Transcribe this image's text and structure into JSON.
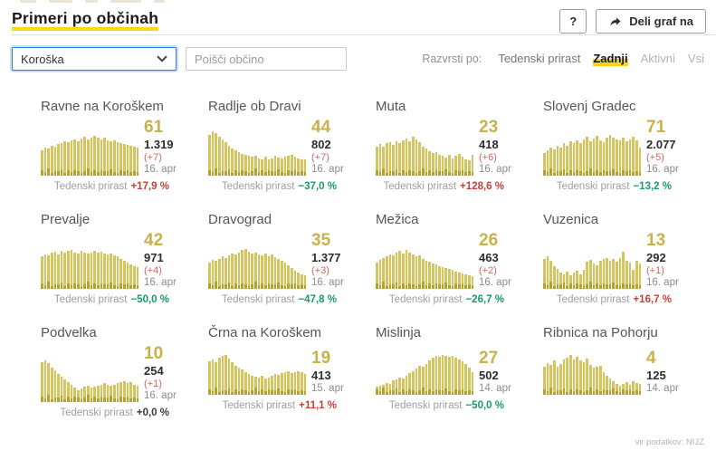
{
  "header": {
    "title": "Primeri po občinah",
    "help_label": "?",
    "share_label": "Deli graf na"
  },
  "filters": {
    "region_selected": "Koroška",
    "search_placeholder": "Poišči občino",
    "sort_label": "Razvrsti po:",
    "sort_options": [
      {
        "label": "Tedenski prirast",
        "active": false,
        "dim": false
      },
      {
        "label": "Zadnji",
        "active": true,
        "dim": false
      },
      {
        "label": "Aktivni",
        "active": false,
        "dim": true
      },
      {
        "label": "Vsi",
        "active": false,
        "dim": true
      }
    ]
  },
  "weekly_label": "Tedenski prirast",
  "footer": {
    "source": "vir podatkov: NIJZ"
  },
  "colors": {
    "accent_yellow": "#ffd615",
    "bar": "#d6c55e",
    "bar_dark": "#b3a22c",
    "big_number": "#c9b14c",
    "growth_red": "#c64036",
    "growth_green": "#179a6c",
    "growth_neutral": "#3b3b3b",
    "new_count": "#d1685f"
  },
  "bar_base_pattern": [
    12,
    7,
    14,
    6,
    10,
    9,
    13,
    5,
    11,
    8,
    12,
    10,
    6,
    9,
    14,
    8,
    11,
    7,
    12,
    9,
    10,
    13,
    8,
    6,
    11,
    9,
    12,
    8,
    10,
    7
  ],
  "cards": [
    {
      "name": "Ravne na Koroškem",
      "last": "61",
      "total": "1.319",
      "new": "(+7)",
      "date": "16. apr",
      "growth": "+17,9 %",
      "growth_color": "red",
      "bars": [
        52,
        58,
        56,
        62,
        60,
        64,
        67,
        70,
        68,
        72,
        74,
        71,
        76,
        79,
        74,
        77,
        81,
        78,
        74,
        77,
        73,
        70,
        72,
        69,
        66,
        64,
        63,
        61,
        59,
        57
      ]
    },
    {
      "name": "Radlje ob Dravi",
      "last": "44",
      "total": "802",
      "new": "(+7)",
      "date": "16. apr",
      "growth": "−37,0 %",
      "growth_color": "green",
      "bars": [
        84,
        90,
        87,
        80,
        74,
        68,
        61,
        56,
        52,
        48,
        45,
        42,
        40,
        38,
        41,
        36,
        34,
        38,
        33,
        36,
        40,
        37,
        35,
        38,
        41,
        43,
        39,
        36,
        34,
        33
      ]
    },
    {
      "name": "Muta",
      "last": "23",
      "total": "418",
      "new": "(+6)",
      "date": "16. apr",
      "growth": "+128,6 %",
      "growth_color": "red",
      "bars": [
        60,
        64,
        59,
        66,
        68,
        63,
        70,
        67,
        72,
        76,
        70,
        79,
        74,
        69,
        60,
        55,
        50,
        46,
        49,
        42,
        40,
        37,
        42,
        36,
        40,
        45,
        38,
        34,
        32,
        43
      ]
    },
    {
      "name": "Slovenj Gradec",
      "last": "71",
      "total": "2.077",
      "new": "(+5)",
      "date": "16. apr",
      "growth": "−13,2 %",
      "growth_color": "green",
      "bars": [
        46,
        52,
        57,
        53,
        61,
        58,
        66,
        62,
        70,
        67,
        73,
        66,
        75,
        79,
        70,
        76,
        81,
        73,
        68,
        77,
        83,
        78,
        74,
        72,
        77,
        70,
        74,
        79,
        72,
        58
      ]
    },
    {
      "name": "Prevalje",
      "last": "42",
      "total": "971",
      "new": "(+4)",
      "date": "16. apr",
      "growth": "−50,0 %",
      "growth_color": "green",
      "bars": [
        66,
        71,
        69,
        74,
        76,
        71,
        78,
        74,
        77,
        79,
        75,
        72,
        77,
        74,
        72,
        75,
        78,
        74,
        76,
        72,
        70,
        73,
        68,
        66,
        62,
        58,
        54,
        50,
        47,
        44
      ]
    },
    {
      "name": "Dravograd",
      "last": "35",
      "total": "1.377",
      "new": "(+3)",
      "date": "16. apr",
      "growth": "−47,8 %",
      "growth_color": "green",
      "bars": [
        54,
        59,
        57,
        62,
        66,
        63,
        68,
        72,
        70,
        75,
        79,
        81,
        76,
        72,
        74,
        70,
        68,
        72,
        66,
        70,
        64,
        61,
        58,
        54,
        49,
        43,
        37,
        33,
        30,
        28
      ]
    },
    {
      "name": "Mežica",
      "last": "26",
      "total": "463",
      "new": "(+2)",
      "date": "16. apr",
      "growth": "−26,7 %",
      "growth_color": "green",
      "bars": [
        54,
        60,
        63,
        67,
        71,
        68,
        75,
        77,
        72,
        79,
        74,
        70,
        66,
        68,
        62,
        58,
        55,
        52,
        50,
        46,
        44,
        42,
        40,
        38,
        36,
        34,
        32,
        30,
        28,
        26
      ]
    },
    {
      "name": "Vuzenica",
      "last": "13",
      "total": "292",
      "new": "(+1)",
      "date": "16. apr",
      "growth": "+16,7 %",
      "growth_color": "red",
      "bars": [
        62,
        66,
        58,
        47,
        40,
        34,
        30,
        35,
        28,
        33,
        37,
        30,
        39,
        56,
        59,
        52,
        48,
        57,
        61,
        63,
        58,
        61,
        56,
        63,
        76,
        58,
        54,
        38,
        57,
        51
      ]
    },
    {
      "name": "Podvelka",
      "last": "10",
      "total": "254",
      "new": "(+1)",
      "date": "16. apr",
      "growth": "+0,0 %",
      "growth_color": "neutral",
      "bars": [
        82,
        86,
        79,
        71,
        64,
        57,
        51,
        47,
        41,
        36,
        29,
        25,
        27,
        31,
        34,
        30,
        32,
        34,
        36,
        38,
        36,
        34,
        36,
        38,
        41,
        43,
        38,
        41,
        36,
        33
      ]
    },
    {
      "name": "Črna na Koroškem",
      "last": "19",
      "total": "413",
      "new": null,
      "date": "15. apr",
      "growth": "+11,1 %",
      "growth_color": "red",
      "bars": [
        68,
        73,
        67,
        76,
        79,
        81,
        74,
        66,
        59,
        55,
        51,
        47,
        43,
        39,
        37,
        35,
        39,
        33,
        36,
        38,
        42,
        40,
        44,
        46,
        48,
        44,
        46,
        49,
        47,
        43
      ]
    },
    {
      "name": "Mislinja",
      "last": "27",
      "total": "502",
      "new": null,
      "date": "14. apr",
      "growth": "−50,0 %",
      "growth_color": "green",
      "bars": [
        16,
        19,
        21,
        25,
        23,
        29,
        31,
        35,
        33,
        39,
        44,
        49,
        54,
        60,
        57,
        63,
        70,
        76,
        80,
        78,
        82,
        80,
        77,
        80,
        76,
        72,
        68,
        63,
        55,
        47
      ]
    },
    {
      "name": "Ribnica na Pohorju",
      "last": "4",
      "total": "125",
      "new": null,
      "date": "14. apr",
      "growth": null,
      "growth_color": null,
      "bars": [
        58,
        65,
        61,
        70,
        57,
        63,
        72,
        76,
        81,
        73,
        78,
        71,
        67,
        74,
        61,
        55,
        57,
        59,
        47,
        39,
        33,
        27,
        23,
        19,
        22,
        26,
        20,
        28,
        25,
        22
      ]
    }
  ]
}
